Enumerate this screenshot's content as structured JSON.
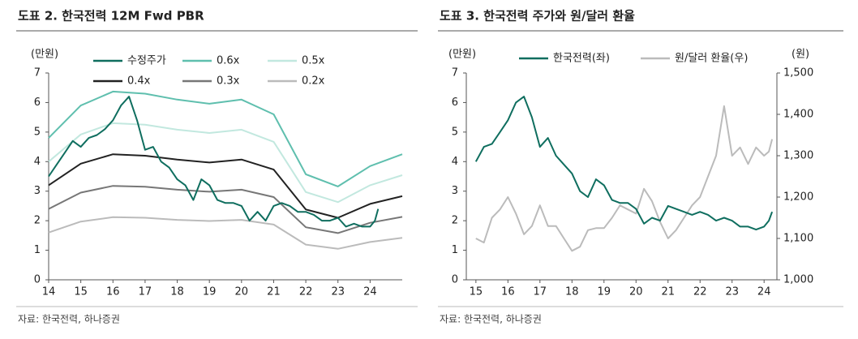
{
  "chart_data": [
    {
      "type": "line",
      "title": "도표 2. 한국전력 12M Fwd PBR",
      "y_label": "(만원)",
      "source": "자료: 한국전력, 하나증권",
      "legend": "top",
      "x": [
        14,
        14.25,
        14.5,
        14.75,
        15,
        15.25,
        15.5,
        15.75,
        16,
        16.25,
        16.5,
        16.75,
        17,
        17.25,
        17.5,
        17.75,
        18,
        18.25,
        18.5,
        18.75,
        19,
        19.25,
        19.5,
        19.75,
        20,
        20.25,
        20.5,
        20.75,
        21,
        21.25,
        21.5,
        21.75,
        22,
        22.25,
        22.5,
        22.75,
        23,
        23.25,
        23.5,
        23.75,
        24,
        24.15,
        24.25
      ],
      "xlim": [
        14,
        25
      ],
      "xticks": [
        14,
        15,
        16,
        17,
        18,
        19,
        20,
        21,
        22,
        23,
        24
      ],
      "ylim": [
        0,
        7
      ],
      "yticks": [
        0,
        1,
        2,
        3,
        4,
        5,
        6,
        7
      ],
      "series": [
        {
          "name": "수정주가",
          "color": "#0f6e5f",
          "width": 2,
          "values": [
            3.5,
            3.9,
            4.3,
            4.7,
            4.5,
            4.8,
            4.9,
            5.1,
            5.4,
            5.9,
            6.2,
            5.4,
            4.4,
            4.5,
            4.0,
            3.8,
            3.4,
            3.2,
            2.7,
            3.4,
            3.2,
            2.7,
            2.6,
            2.6,
            2.5,
            2.0,
            2.3,
            2.0,
            2.5,
            2.6,
            2.5,
            2.3,
            2.3,
            2.2,
            2.0,
            2.0,
            2.1,
            1.8,
            1.9,
            1.8,
            1.8,
            2.0,
            2.4
          ]
        },
        {
          "name": "0.6x",
          "color": "#5fbfae",
          "width": 2,
          "x": [
            14,
            15,
            16,
            17,
            18,
            19,
            20,
            21,
            22,
            23,
            24,
            25
          ],
          "values": [
            4.8,
            5.9,
            6.37,
            6.3,
            6.1,
            5.96,
            6.1,
            5.6,
            3.57,
            3.16,
            3.85,
            4.25
          ]
        },
        {
          "name": "0.5x",
          "color": "#c2e8df",
          "width": 2,
          "x": [
            14,
            15,
            16,
            17,
            18,
            19,
            20,
            21,
            22,
            23,
            24,
            25
          ],
          "values": [
            4.0,
            4.92,
            5.3,
            5.25,
            5.08,
            4.97,
            5.08,
            4.67,
            2.97,
            2.63,
            3.2,
            3.54
          ]
        },
        {
          "name": "0.4x",
          "color": "#222222",
          "width": 2,
          "x": [
            14,
            15,
            16,
            17,
            18,
            19,
            20,
            21,
            22,
            23,
            24,
            25
          ],
          "values": [
            3.2,
            3.93,
            4.25,
            4.2,
            4.07,
            3.97,
            4.07,
            3.73,
            2.38,
            2.1,
            2.57,
            2.83
          ]
        },
        {
          "name": "0.3x",
          "color": "#777777",
          "width": 2,
          "x": [
            14,
            15,
            16,
            17,
            18,
            19,
            20,
            21,
            22,
            23,
            24,
            25
          ],
          "values": [
            2.4,
            2.95,
            3.18,
            3.15,
            3.05,
            2.98,
            3.05,
            2.8,
            1.78,
            1.58,
            1.93,
            2.13
          ]
        },
        {
          "name": "0.2x",
          "color": "#bbbbbb",
          "width": 2,
          "x": [
            14,
            15,
            16,
            17,
            18,
            19,
            20,
            21,
            22,
            23,
            24,
            25
          ],
          "values": [
            1.6,
            1.97,
            2.12,
            2.1,
            2.03,
            1.99,
            2.03,
            1.87,
            1.19,
            1.05,
            1.28,
            1.42
          ]
        }
      ]
    },
    {
      "type": "line",
      "title": "도표 3. 한국전력 주가와 원/달러 환율",
      "y_label": "(만원)",
      "y2_label": "(원)",
      "source": "자료: 한국전력, 하나증권",
      "legend": "top",
      "x": [
        15,
        15.25,
        15.5,
        15.75,
        16,
        16.25,
        16.5,
        16.75,
        17,
        17.25,
        17.5,
        17.75,
        18,
        18.25,
        18.5,
        18.75,
        19,
        19.25,
        19.5,
        19.75,
        20,
        20.25,
        20.5,
        20.75,
        21,
        21.25,
        21.5,
        21.75,
        22,
        22.25,
        22.5,
        22.75,
        23,
        23.25,
        23.5,
        23.75,
        24,
        24.15,
        24.25
      ],
      "xlim": [
        14.7,
        24.4
      ],
      "xticks": [
        15,
        16,
        17,
        18,
        19,
        20,
        21,
        22,
        23,
        24
      ],
      "ylim": [
        0,
        7
      ],
      "yticks": [
        0,
        1,
        2,
        3,
        4,
        5,
        6,
        7
      ],
      "y2lim": [
        1000,
        1500
      ],
      "y2ticks": [
        {
          "value": 1000,
          "label": "1,000"
        },
        {
          "value": 1100,
          "label": "1,100"
        },
        {
          "value": 1200,
          "label": "1,200"
        },
        {
          "value": 1300,
          "label": "1,300"
        },
        {
          "value": 1400,
          "label": "1,400"
        },
        {
          "value": 1500,
          "label": "1,500"
        }
      ],
      "series": [
        {
          "name": "한국전력(좌)",
          "color": "#0f6e5f",
          "width": 2,
          "values": [
            4.0,
            4.5,
            4.6,
            5.0,
            5.4,
            6.0,
            6.2,
            5.5,
            4.5,
            4.8,
            4.2,
            3.9,
            3.6,
            3.0,
            2.8,
            3.4,
            3.2,
            2.7,
            2.6,
            2.6,
            2.4,
            1.9,
            2.1,
            2.0,
            2.5,
            2.4,
            2.3,
            2.2,
            2.3,
            2.2,
            2.0,
            2.1,
            2.0,
            1.8,
            1.8,
            1.7,
            1.8,
            2.0,
            2.3
          ]
        },
        {
          "name": "원/달러 환율(우)",
          "color": "#bbbbbb",
          "width": 2,
          "axis": "y2",
          "values": [
            1100,
            1090,
            1150,
            1170,
            1200,
            1160,
            1110,
            1130,
            1180,
            1130,
            1130,
            1100,
            1070,
            1080,
            1120,
            1125,
            1125,
            1150,
            1180,
            1170,
            1160,
            1220,
            1190,
            1140,
            1100,
            1120,
            1150,
            1180,
            1200,
            1250,
            1300,
            1420,
            1300,
            1320,
            1280,
            1320,
            1300,
            1310,
            1340
          ]
        }
      ]
    }
  ]
}
